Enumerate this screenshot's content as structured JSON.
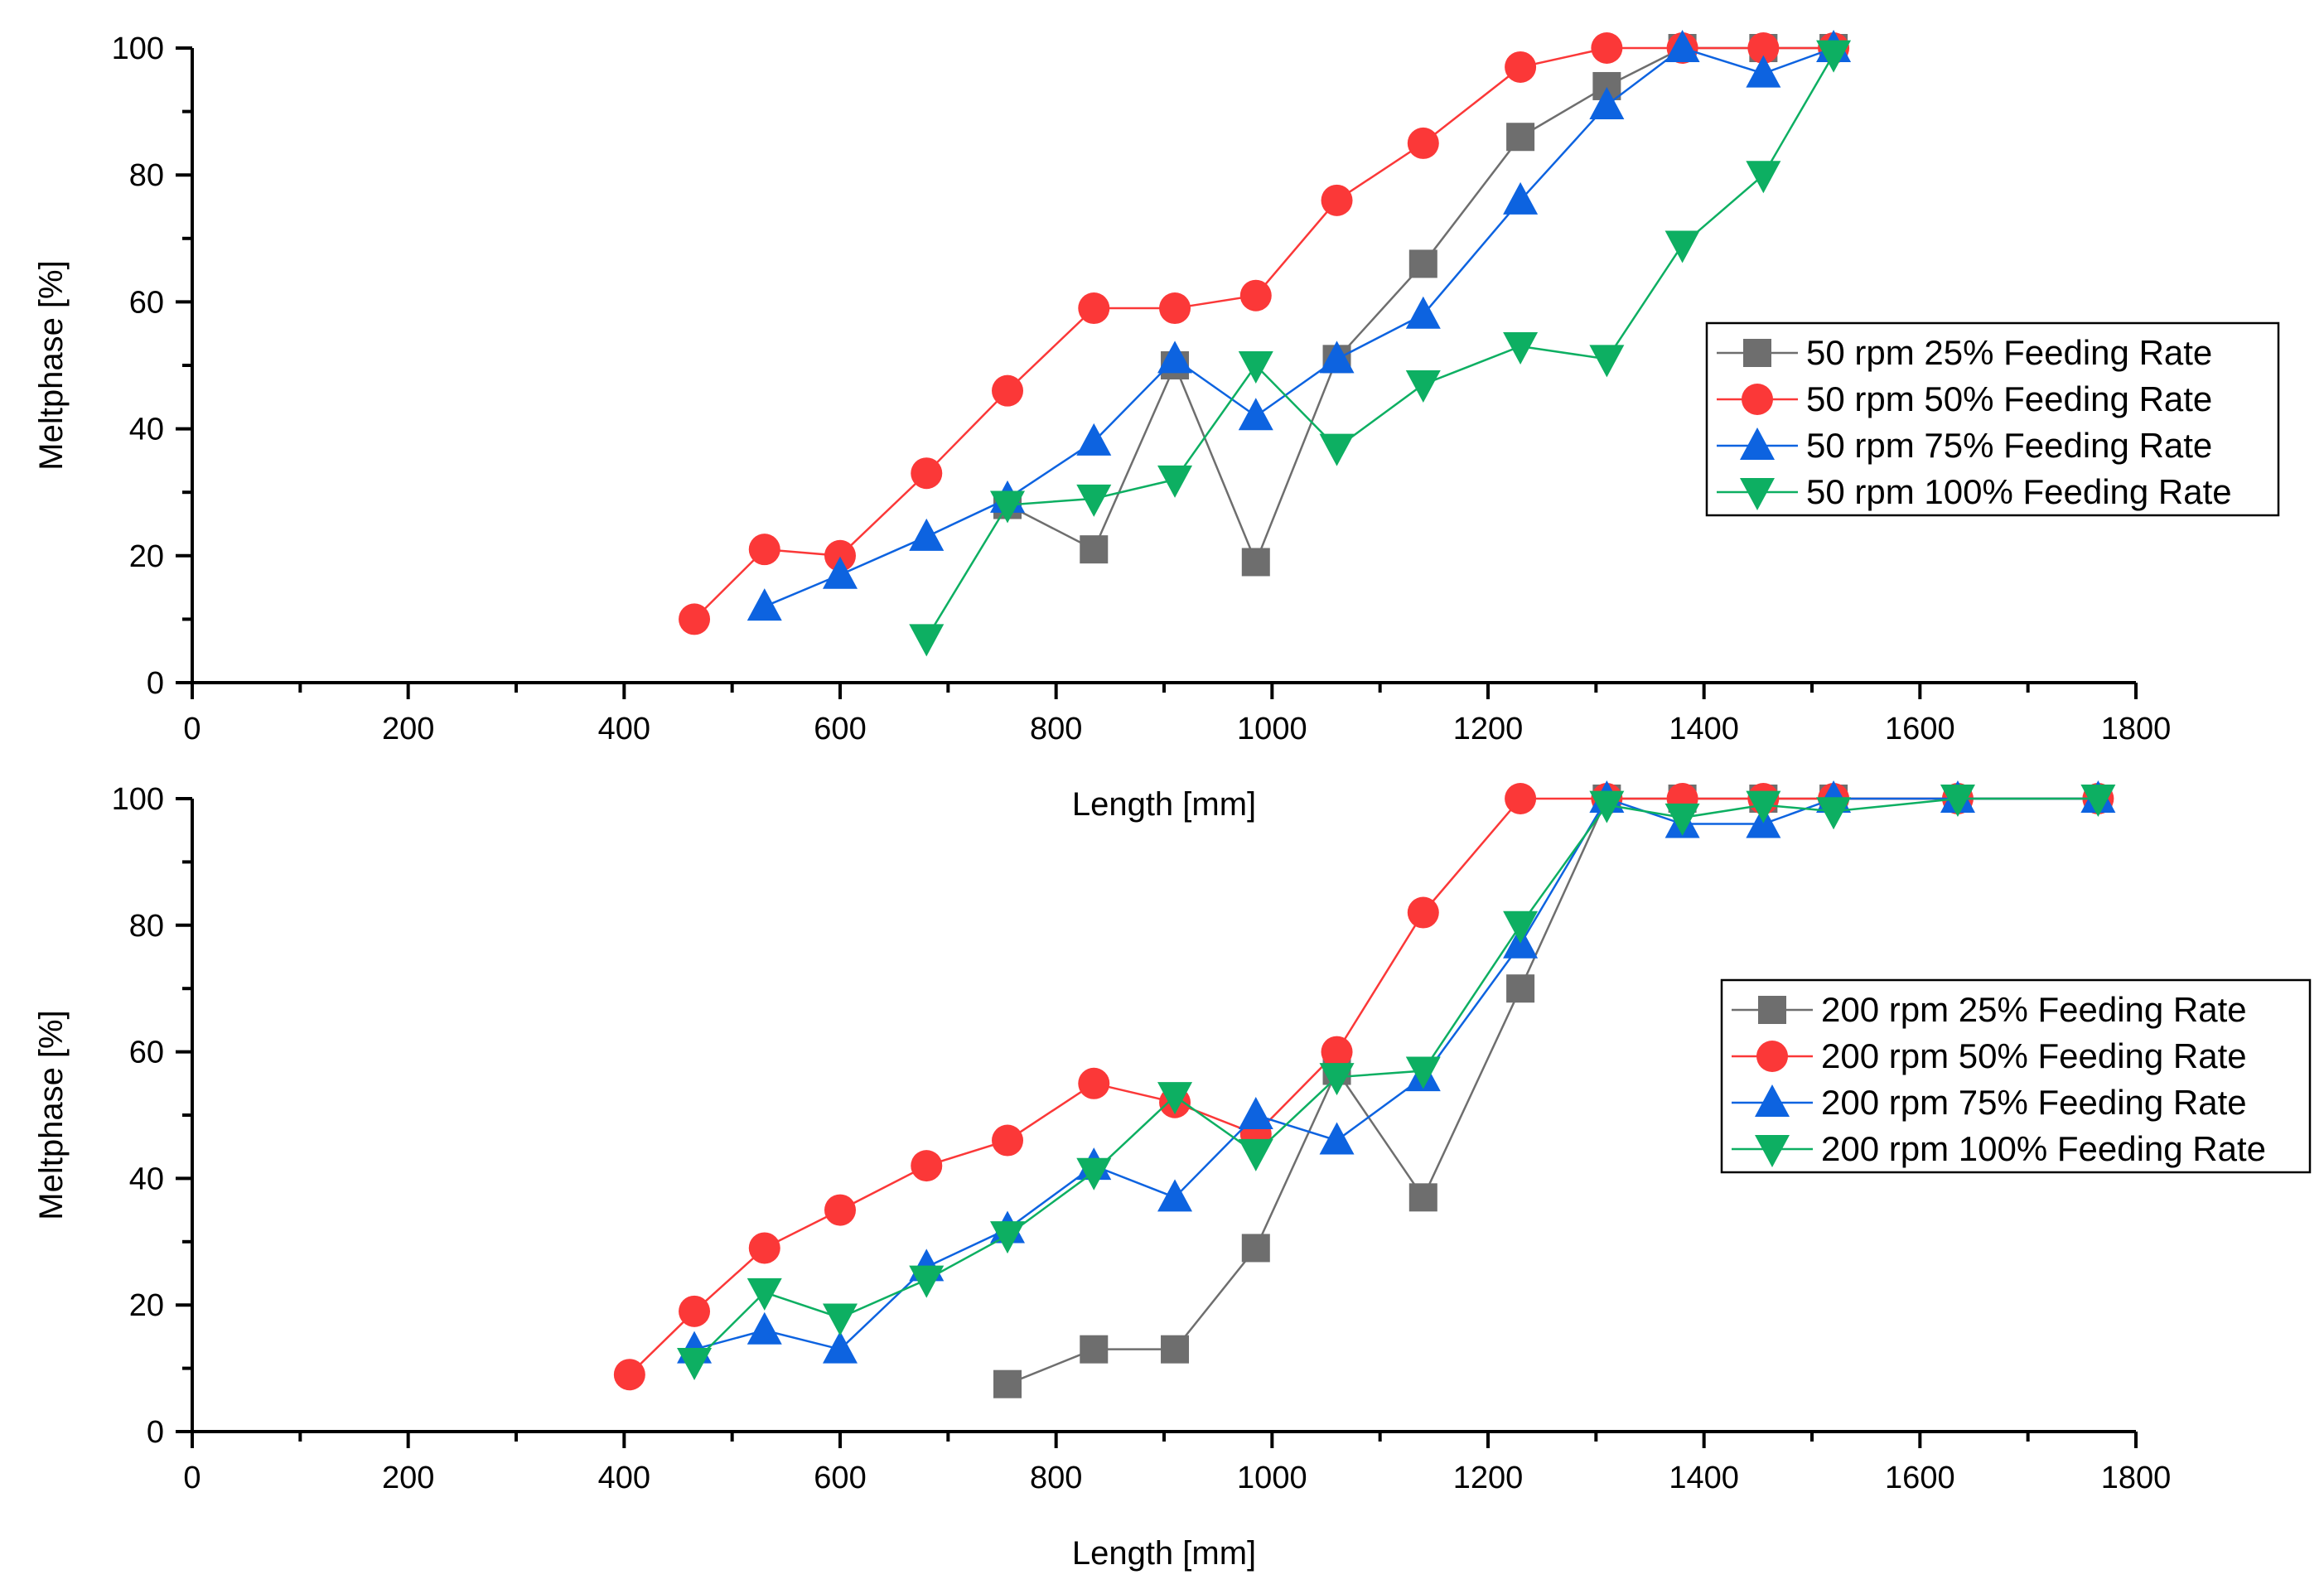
{
  "chart_data": [
    {
      "type": "line",
      "title": "",
      "xlabel": "Length [mm]",
      "ylabel": "Meltphase [%]",
      "xlim": [
        0,
        1800
      ],
      "ylim": [
        0,
        100
      ],
      "xticks": [
        "0",
        "200",
        "400",
        "600",
        "800",
        "1000",
        "1200",
        "1400",
        "1600",
        "1800"
      ],
      "yticks": [
        "0",
        "20",
        "40",
        "60",
        "80",
        "100"
      ],
      "legend_position": "right",
      "series": [
        {
          "name": "50 rpm 25% Feeding Rate",
          "color": "#6e6e6e",
          "marker": "square",
          "x": [
            755,
            835,
            910,
            985,
            1060,
            1140,
            1230,
            1310,
            1380,
            1455,
            1520
          ],
          "y": [
            28,
            21,
            50,
            19,
            51,
            66,
            86,
            94,
            100,
            100,
            100
          ]
        },
        {
          "name": "50 rpm 50% Feeding Rate",
          "color": "#fb3838",
          "marker": "circle",
          "x": [
            465,
            530,
            600,
            680,
            755,
            835,
            910,
            985,
            1060,
            1140,
            1230,
            1310,
            1380,
            1455,
            1520
          ],
          "y": [
            10,
            21,
            20,
            33,
            46,
            59,
            59,
            61,
            76,
            85,
            97,
            100,
            100,
            100,
            100
          ]
        },
        {
          "name": "50 rpm 75% Feeding Rate",
          "color": "#0d63e0",
          "marker": "triangle-up",
          "x": [
            530,
            600,
            680,
            755,
            835,
            910,
            985,
            1060,
            1140,
            1230,
            1310,
            1380,
            1455,
            1520
          ],
          "y": [
            12,
            17,
            23,
            29,
            38,
            51,
            42,
            51,
            58,
            76,
            91,
            100,
            96,
            100
          ]
        },
        {
          "name": "50 rpm 100% Feeding Rate",
          "color": "#0daf62",
          "marker": "triangle-down",
          "x": [
            680,
            755,
            835,
            910,
            985,
            1060,
            1140,
            1230,
            1310,
            1380,
            1455,
            1520
          ],
          "y": [
            7,
            28,
            29,
            32,
            50,
            37,
            47,
            53,
            51,
            69,
            80,
            99
          ]
        }
      ]
    },
    {
      "type": "line",
      "title": "",
      "xlabel": "Length [mm]",
      "ylabel": "Meltphase [%]",
      "xlim": [
        0,
        1800
      ],
      "ylim": [
        0,
        100
      ],
      "xticks": [
        "0",
        "200",
        "400",
        "600",
        "800",
        "1000",
        "1200",
        "1400",
        "1600",
        "1800"
      ],
      "yticks": [
        "0",
        "20",
        "40",
        "60",
        "80",
        "100"
      ],
      "legend_position": "right",
      "series": [
        {
          "name": "200 rpm 25% Feeding Rate",
          "color": "#6e6e6e",
          "marker": "square",
          "x": [
            755,
            835,
            910,
            985,
            1060,
            1140,
            1230,
            1310,
            1380,
            1455,
            1520,
            1635,
            1765
          ],
          "y": [
            7.5,
            13,
            13,
            29,
            57,
            37,
            70,
            100,
            100,
            100,
            100,
            100,
            100
          ]
        },
        {
          "name": "200 rpm 50% Feeding Rate",
          "color": "#fb3838",
          "marker": "circle",
          "x": [
            405,
            465,
            530,
            600,
            680,
            755,
            835,
            910,
            985,
            1060,
            1140,
            1230,
            1310,
            1380,
            1455,
            1520,
            1635,
            1765
          ],
          "y": [
            9,
            19,
            29,
            35,
            42,
            46,
            55,
            52,
            47,
            60,
            82,
            100,
            100,
            100,
            100,
            100,
            100,
            100
          ]
        },
        {
          "name": "200 rpm 75% Feeding Rate",
          "color": "#0d63e0",
          "marker": "triangle-up",
          "x": [
            465,
            530,
            600,
            680,
            755,
            835,
            910,
            985,
            1060,
            1140,
            1230,
            1310,
            1380,
            1455,
            1520,
            1635,
            1765
          ],
          "y": [
            13,
            16,
            13,
            26,
            32,
            42,
            37,
            50,
            46,
            56,
            77,
            100,
            96,
            96,
            100,
            100,
            100
          ]
        },
        {
          "name": "200 rpm 100% Feeding Rate",
          "color": "#0daf62",
          "marker": "triangle-down",
          "x": [
            465,
            530,
            600,
            680,
            755,
            835,
            910,
            985,
            1060,
            1140,
            1230,
            1310,
            1380,
            1455,
            1520,
            1635,
            1765
          ],
          "y": [
            11,
            22,
            18,
            24,
            31,
            41,
            53,
            44,
            56,
            57,
            80,
            99,
            97,
            99,
            98,
            100,
            100
          ]
        }
      ]
    }
  ]
}
